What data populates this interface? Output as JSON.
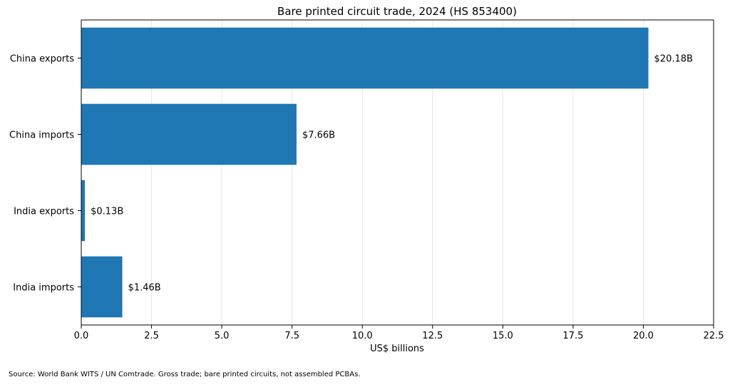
{
  "chart_data": {
    "type": "bar",
    "orientation": "horizontal",
    "title": "Bare printed circuit trade, 2024 (HS 853400)",
    "xlabel": "US$ billions",
    "ylabel": "",
    "categories": [
      "China exports",
      "China imports",
      "India exports",
      "India imports"
    ],
    "values": [
      20.18,
      7.66,
      0.13,
      1.46
    ],
    "data_labels": [
      "$20.18B",
      "$7.66B",
      "$0.13B",
      "$1.46B"
    ],
    "xlim": [
      0,
      22.5
    ],
    "xticks": [
      0.0,
      2.5,
      5.0,
      7.5,
      10.0,
      12.5,
      15.0,
      17.5,
      20.0,
      22.5
    ],
    "xtick_labels": [
      "0.0",
      "2.5",
      "5.0",
      "7.5",
      "10.0",
      "12.5",
      "15.0",
      "17.5",
      "20.0",
      "22.5"
    ],
    "grid": "x",
    "legend": "none",
    "bar_color": "#1f77b4",
    "grid_color": "#e6e6e6"
  },
  "footer": {
    "source": "Source: World Bank WITS / UN Comtrade. Gross trade; bare printed circuits, not assembled PCBAs."
  }
}
